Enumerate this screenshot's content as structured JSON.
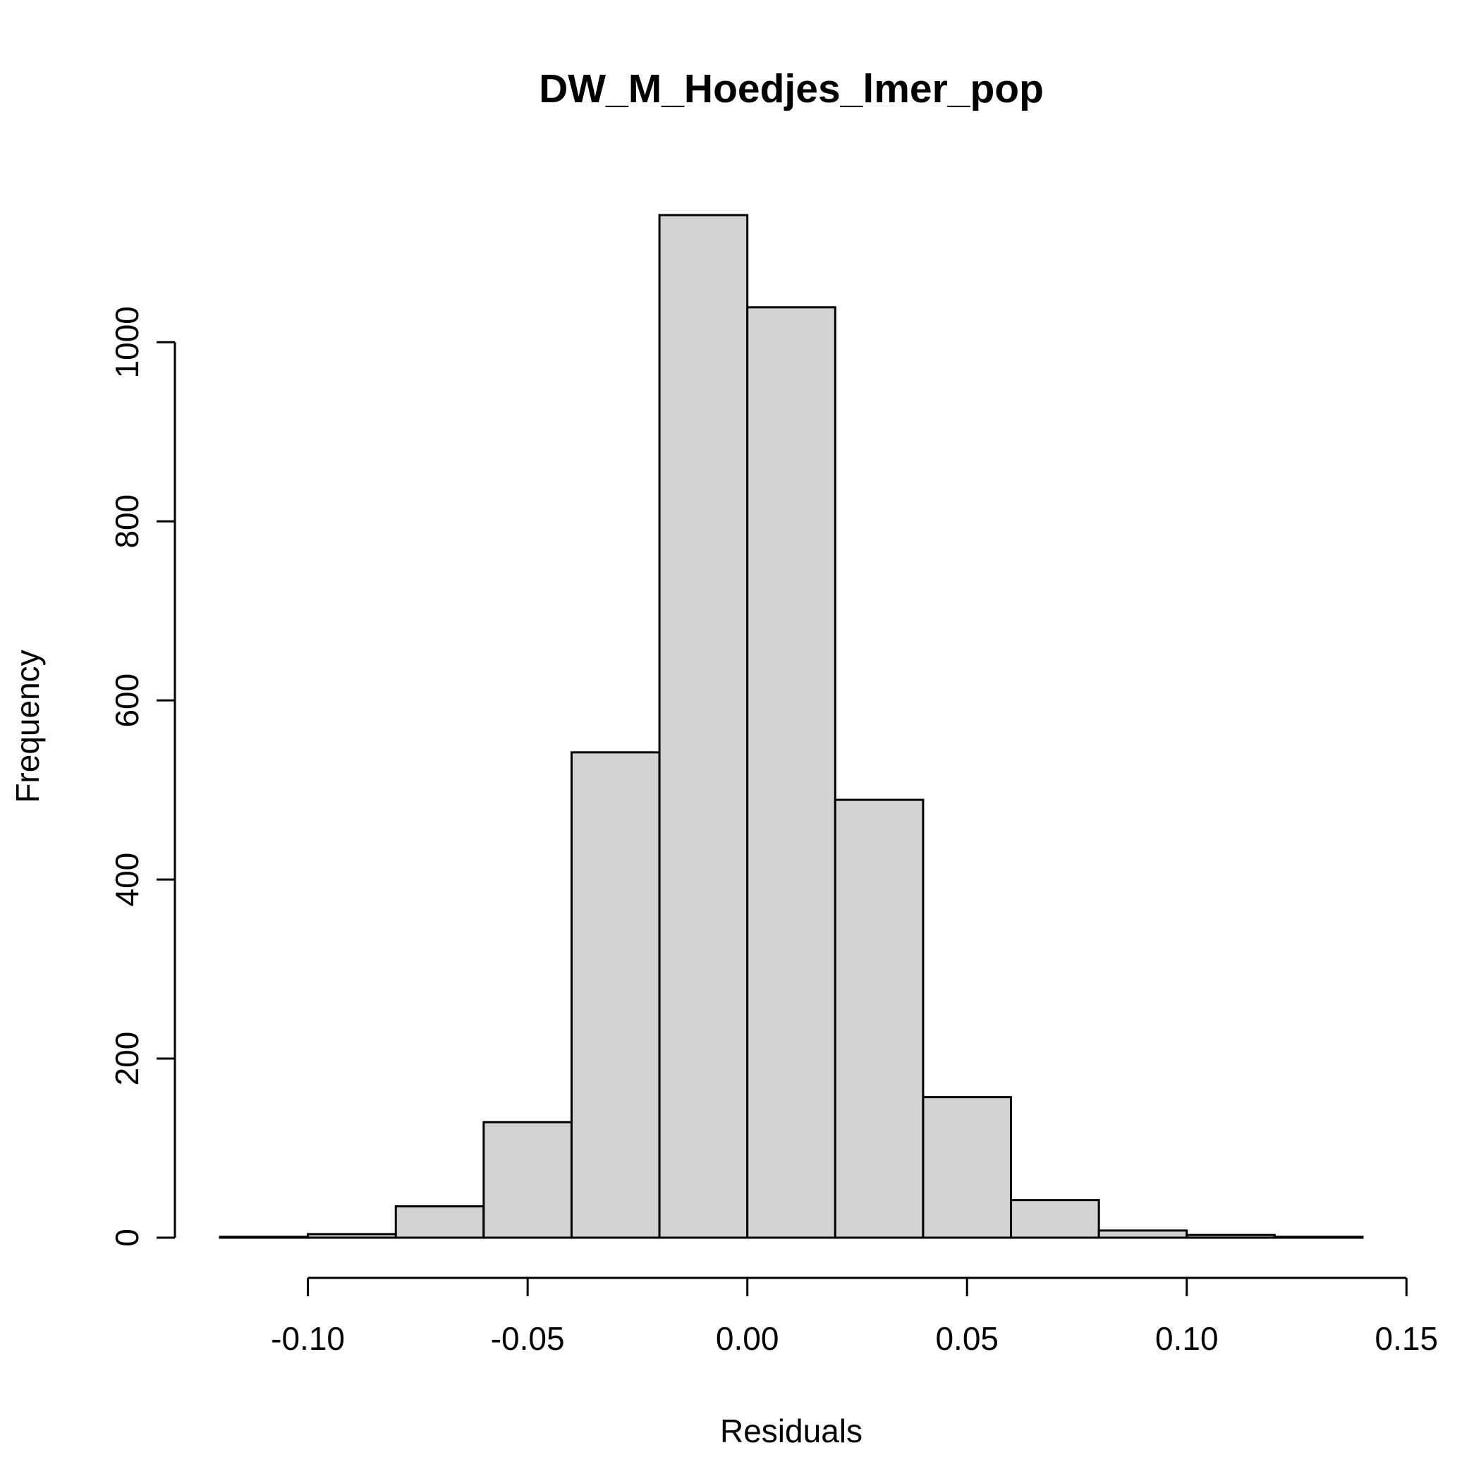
{
  "chart_data": {
    "type": "bar",
    "title": "DW_M_Hoedjes_lmer_pop",
    "xlabel": "Residuals",
    "ylabel": "Frequency",
    "bins": [
      {
        "x0": -0.12,
        "x1": -0.1,
        "count": 1
      },
      {
        "x0": -0.1,
        "x1": -0.08,
        "count": 4
      },
      {
        "x0": -0.08,
        "x1": -0.06,
        "count": 35
      },
      {
        "x0": -0.06,
        "x1": -0.04,
        "count": 129
      },
      {
        "x0": -0.04,
        "x1": -0.02,
        "count": 542
      },
      {
        "x0": -0.02,
        "x1": 0.0,
        "count": 1142
      },
      {
        "x0": 0.0,
        "x1": 0.02,
        "count": 1039
      },
      {
        "x0": 0.02,
        "x1": 0.04,
        "count": 489
      },
      {
        "x0": 0.04,
        "x1": 0.06,
        "count": 157
      },
      {
        "x0": 0.06,
        "x1": 0.08,
        "count": 42
      },
      {
        "x0": 0.08,
        "x1": 0.1,
        "count": 8
      },
      {
        "x0": 0.1,
        "x1": 0.12,
        "count": 3
      },
      {
        "x0": 0.12,
        "x1": 0.14,
        "count": 1
      }
    ],
    "x_ticks": [
      -0.1,
      -0.05,
      0.0,
      0.05,
      0.1,
      0.15
    ],
    "x_tick_labels": [
      "-0.10",
      "-0.05",
      "0.00",
      "0.05",
      "0.10",
      "0.15"
    ],
    "y_ticks": [
      0,
      200,
      400,
      600,
      800,
      1000
    ],
    "y_tick_labels": [
      "0",
      "200",
      "400",
      "600",
      "800",
      "1000"
    ],
    "xlim": [
      -0.12,
      0.14
    ],
    "ylim": [
      0,
      1142
    ],
    "grid": false,
    "legend": "none",
    "bar_fill": "#d3d3d3",
    "bar_stroke": "#000000"
  }
}
